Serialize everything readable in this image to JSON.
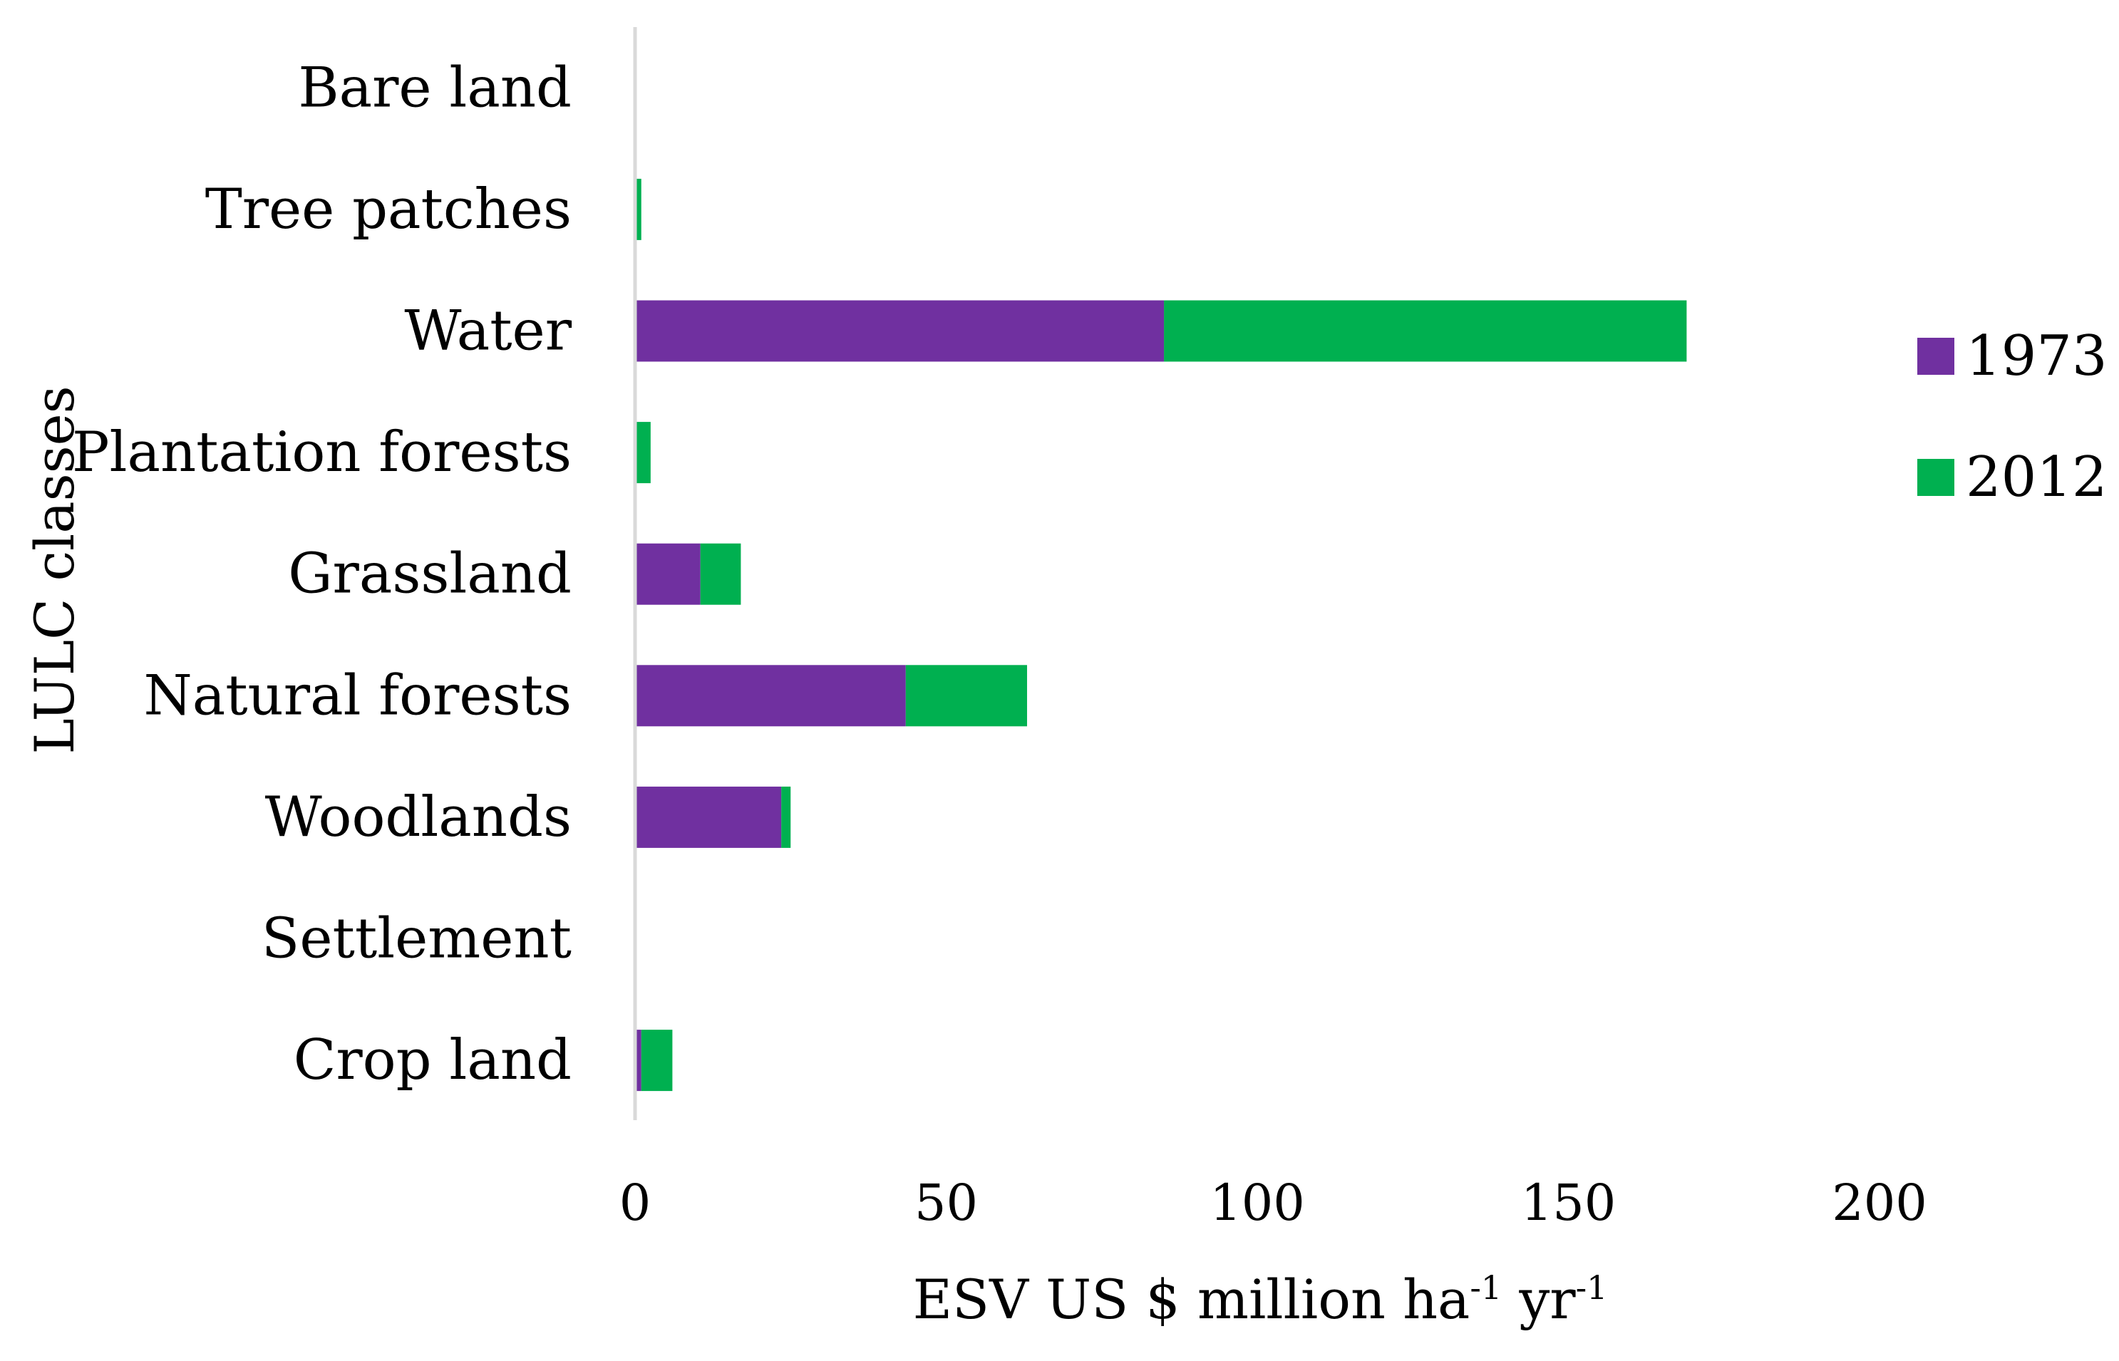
{
  "chart_data": {
    "type": "bar",
    "orientation": "horizontal",
    "stacked": true,
    "categories": [
      "Bare land",
      "Tree patches",
      "Water",
      "Plantation forests",
      "Grassland",
      "Natural forests",
      "Woodlands",
      "Settlement",
      "Crop land"
    ],
    "series": [
      {
        "name": "1973",
        "color": "#7030A0",
        "values": [
          0,
          0,
          85,
          0,
          10.5,
          43.5,
          23.5,
          0,
          1
        ]
      },
      {
        "name": "2012",
        "color": "#00B050",
        "values": [
          0,
          1,
          84,
          2.5,
          6.5,
          19.5,
          1.5,
          0,
          5
        ]
      }
    ],
    "xlabel": {
      "parts": [
        {
          "text": "ESV US $ million ha",
          "sup": false
        },
        {
          "text": "-1",
          "sup": true
        },
        {
          "text": " yr",
          "sup": false
        },
        {
          "text": "-1",
          "sup": true
        }
      ]
    },
    "ylabel": "LULC classes",
    "xlim": [
      0,
      200
    ],
    "xticks": [
      0,
      50,
      100,
      150,
      200
    ],
    "grid": false,
    "legend_position": "right"
  }
}
